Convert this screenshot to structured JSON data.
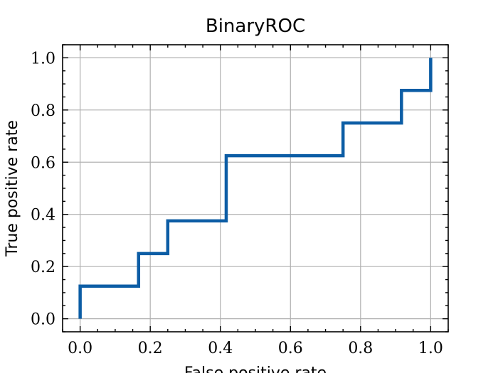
{
  "chart_data": {
    "type": "line",
    "title": "BinaryROC",
    "xlabel": "False positive rate",
    "ylabel": "True positive rate",
    "xlim": [
      -0.05,
      1.05
    ],
    "ylim": [
      -0.05,
      1.05
    ],
    "grid": true,
    "x_ticks": [
      0.0,
      0.2,
      0.4,
      0.6,
      0.8,
      1.0
    ],
    "y_ticks": [
      0.0,
      0.2,
      0.4,
      0.6,
      0.8,
      1.0
    ],
    "x_tick_labels": [
      "0.0",
      "0.2",
      "0.4",
      "0.6",
      "0.8",
      "1.0"
    ],
    "y_tick_labels": [
      "0.0",
      "0.2",
      "0.4",
      "0.6",
      "0.8",
      "1.0"
    ],
    "series": [
      {
        "color": "#0c5da5",
        "step": true,
        "points": [
          [
            0.0,
            0.0
          ],
          [
            0.0,
            0.125
          ],
          [
            0.1667,
            0.125
          ],
          [
            0.1667,
            0.25
          ],
          [
            0.25,
            0.25
          ],
          [
            0.25,
            0.375
          ],
          [
            0.4167,
            0.375
          ],
          [
            0.4167,
            0.625
          ],
          [
            0.75,
            0.625
          ],
          [
            0.75,
            0.75
          ],
          [
            0.9167,
            0.75
          ],
          [
            0.9167,
            0.875
          ],
          [
            1.0,
            0.875
          ],
          [
            1.0,
            1.0
          ]
        ]
      }
    ]
  }
}
